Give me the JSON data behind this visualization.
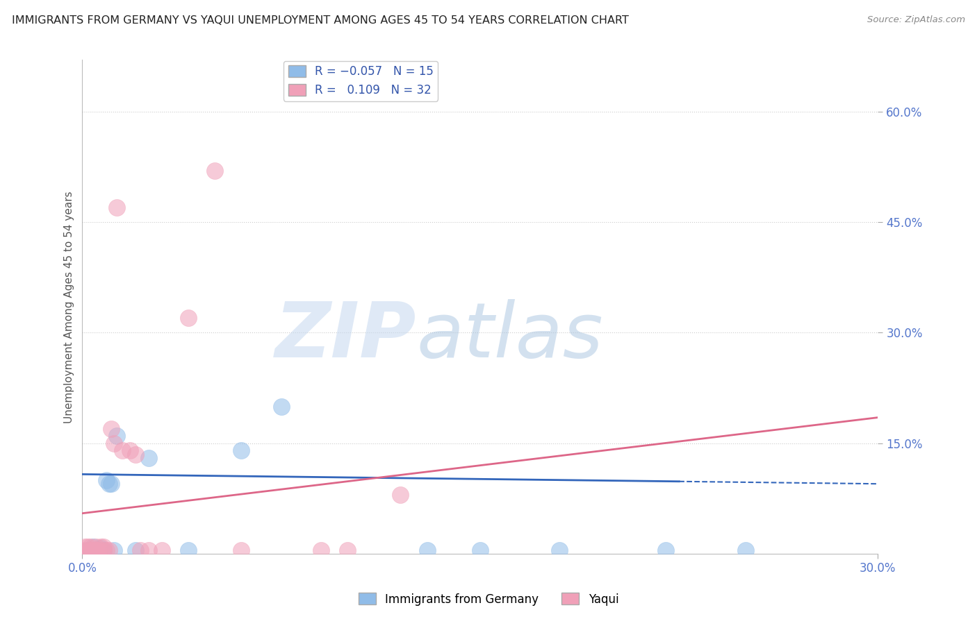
{
  "title": "IMMIGRANTS FROM GERMANY VS YAQUI UNEMPLOYMENT AMONG AGES 45 TO 54 YEARS CORRELATION CHART",
  "source": "Source: ZipAtlas.com",
  "ylabel": "Unemployment Among Ages 45 to 54 years",
  "xlim": [
    0.0,
    0.3
  ],
  "ylim": [
    0.0,
    0.67
  ],
  "yticks": [
    0.15,
    0.3,
    0.45,
    0.6
  ],
  "ytick_labels": [
    "15.0%",
    "30.0%",
    "45.0%",
    "60.0%"
  ],
  "xtick_labels": [
    "0.0%",
    "30.0%"
  ],
  "germany_color": "#90bce8",
  "yaqui_color": "#f0a0b8",
  "trend_germany_color": "#3366bb",
  "trend_yaqui_color": "#dd6688",
  "background_color": "#ffffff",
  "grid_color": "#cccccc",
  "watermark_zip": "ZIP",
  "watermark_atlas": "atlas",
  "watermark_color_zip": "#c8ddf5",
  "watermark_color_atlas": "#b8c8e8",
  "germany_x": [
    0.002,
    0.004,
    0.005,
    0.006,
    0.007,
    0.008,
    0.009,
    0.01,
    0.011,
    0.012,
    0.013,
    0.02,
    0.025,
    0.04,
    0.06,
    0.075,
    0.13,
    0.15,
    0.18,
    0.22,
    0.25
  ],
  "germany_y": [
    0.005,
    0.01,
    0.005,
    0.005,
    0.008,
    0.005,
    0.1,
    0.095,
    0.095,
    0.005,
    0.16,
    0.005,
    0.13,
    0.005,
    0.14,
    0.2,
    0.005,
    0.005,
    0.005,
    0.005,
    0.005
  ],
  "yaqui_x": [
    0.0,
    0.001,
    0.002,
    0.002,
    0.003,
    0.003,
    0.004,
    0.004,
    0.005,
    0.005,
    0.005,
    0.006,
    0.007,
    0.008,
    0.008,
    0.009,
    0.01,
    0.011,
    0.012,
    0.013,
    0.015,
    0.018,
    0.02,
    0.022,
    0.025,
    0.03,
    0.04,
    0.05,
    0.06,
    0.09,
    0.1,
    0.12
  ],
  "yaqui_y": [
    0.005,
    0.01,
    0.005,
    0.01,
    0.005,
    0.01,
    0.005,
    0.005,
    0.005,
    0.005,
    0.01,
    0.005,
    0.01,
    0.005,
    0.01,
    0.005,
    0.005,
    0.17,
    0.15,
    0.47,
    0.14,
    0.14,
    0.135,
    0.005,
    0.005,
    0.005,
    0.32,
    0.52,
    0.005,
    0.005,
    0.005,
    0.08
  ],
  "trend_germany_start_y": 0.108,
  "trend_germany_end_y": 0.095,
  "trend_yaqui_start_y": 0.055,
  "trend_yaqui_end_y": 0.185,
  "trend_germany_solid_end": 0.225,
  "trend_germany_dash_start": 0.225
}
